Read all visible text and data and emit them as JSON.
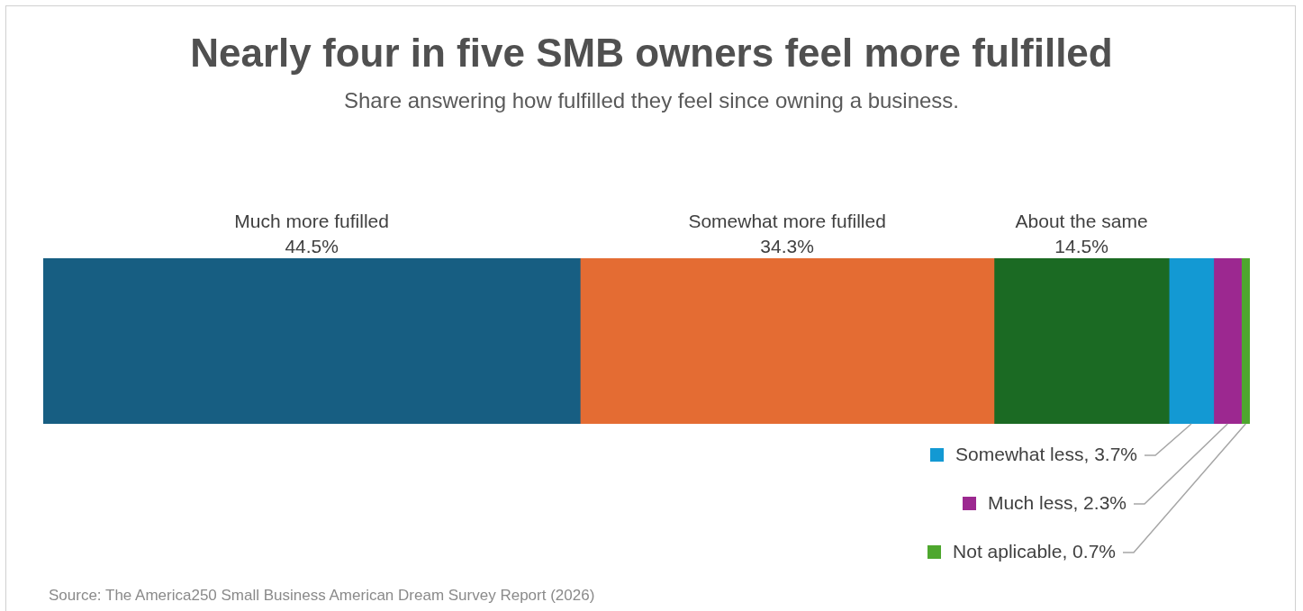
{
  "chart_data": {
    "type": "bar",
    "title": "Nearly four in five SMB owners feel more fulfilled",
    "subtitle": "Share answering how fulfilled they feel since owning a business.",
    "orientation": "horizontal",
    "stacked": true,
    "categories": [
      null
    ],
    "tick_labels": false,
    "legend": false,
    "series": [
      {
        "name": "Much more fufilled",
        "color": "#175e82",
        "values": [
          44.5
        ],
        "value_labels": [
          "44.5%"
        ]
      },
      {
        "name": "Somewhat more fufilled",
        "color": "#e46c33",
        "values": [
          34.3
        ],
        "value_labels": [
          "34.3%"
        ]
      },
      {
        "name": "About the same",
        "color": "#1b6a23",
        "values": [
          14.5
        ],
        "value_labels": [
          "14.5%"
        ]
      },
      {
        "color": "#1399d3",
        "values": [
          3.7
        ],
        "value_labels": [
          "Somewhat less, 3.7%"
        ]
      },
      {
        "color": "#9c2890",
        "values": [
          2.3
        ],
        "value_labels": [
          "Much less, 2.3%"
        ]
      },
      {
        "color": "#4ea72e",
        "values": [
          0.7
        ],
        "value_labels": [
          "Not aplicable, 0.7%"
        ]
      }
    ],
    "annotations": [
      "Source: The America250 Small Business American Dream Survey Report (2026)"
    ]
  }
}
